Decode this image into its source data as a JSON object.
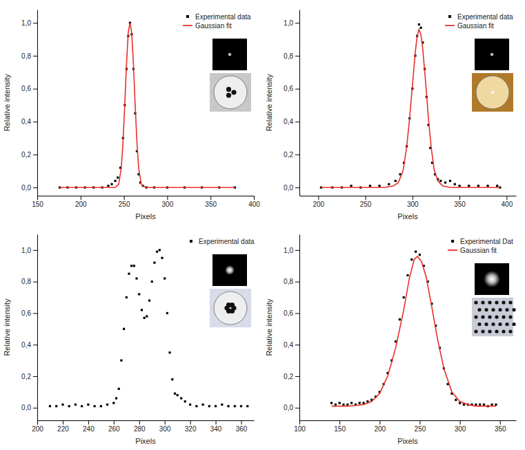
{
  "chart_data": [
    {
      "type": "scatter",
      "x_label": "Pixels",
      "y_label": "Relative intensity",
      "legend": "upper right",
      "xlim": [
        150,
        400
      ],
      "xticks": [
        150,
        200,
        250,
        300,
        350,
        400
      ],
      "ylim": [
        -0.05,
        1.08
      ],
      "yticks": [
        {
          "value": 0,
          "label": "0,0"
        },
        {
          "value": 0.2,
          "label": "0,2"
        },
        {
          "value": 0.4,
          "label": "0,4"
        },
        {
          "value": 0.6,
          "label": "0,6"
        },
        {
          "value": 0.8,
          "label": "0,8"
        },
        {
          "value": 1.0,
          "label": "1,0"
        }
      ],
      "series": [
        {
          "name": "Experimental data",
          "color": "#000000",
          "type": "scatter",
          "marker": "square",
          "x": [
            176,
            185,
            195,
            205,
            215,
            225,
            232,
            236,
            240,
            243,
            246,
            249,
            251,
            253,
            255,
            257,
            259,
            261,
            263,
            265,
            267,
            269,
            272,
            276,
            285,
            300,
            320,
            340,
            360,
            378
          ],
          "values": [
            0,
            0,
            0,
            0,
            0,
            0,
            0.01,
            0.02,
            0.04,
            0.06,
            0.12,
            0.3,
            0.5,
            0.72,
            0.92,
            1.0,
            0.93,
            0.72,
            0.45,
            0.22,
            0.08,
            0.03,
            0.01,
            0,
            0,
            0,
            0,
            0,
            0,
            0
          ]
        },
        {
          "name": "Gaussian fit",
          "color": "#e8302a",
          "type": "line",
          "line_style": "solid",
          "x": [
            176,
            240,
            244,
            247,
            249,
            251,
            253,
            255,
            257,
            259,
            261,
            263,
            265,
            267,
            270,
            275,
            378
          ],
          "values": [
            0,
            0,
            0.02,
            0.12,
            0.28,
            0.5,
            0.75,
            0.94,
            1.0,
            0.94,
            0.75,
            0.5,
            0.28,
            0.12,
            0.02,
            0,
            0
          ]
        }
      ]
    },
    {
      "type": "scatter",
      "x_label": "Pixels",
      "y_label": "Relative intensity",
      "legend": "upper right",
      "xlim": [
        180,
        410
      ],
      "xticks": [
        200,
        250,
        300,
        350,
        400
      ],
      "ylim": [
        -0.05,
        1.08
      ],
      "yticks": [
        {
          "value": 0,
          "label": "0,0"
        },
        {
          "value": 0.2,
          "label": "0,2"
        },
        {
          "value": 0.4,
          "label": "0,4"
        },
        {
          "value": 0.6,
          "label": "0,6"
        },
        {
          "value": 0.8,
          "label": "0,8"
        },
        {
          "value": 1.0,
          "label": "1,0"
        }
      ],
      "series": [
        {
          "name": "Experimental data",
          "color": "#000000",
          "type": "scatter",
          "marker": "square",
          "x": [
            203,
            215,
            225,
            235,
            245,
            255,
            265,
            275,
            282,
            287,
            291,
            294,
            297,
            300,
            303,
            305,
            307,
            309,
            311,
            313,
            315,
            317,
            319,
            321,
            324,
            327,
            330,
            335,
            340,
            345,
            350,
            360,
            370,
            380,
            390,
            393
          ],
          "values": [
            0,
            0,
            0,
            0.01,
            0,
            0.01,
            0.01,
            0.02,
            0.04,
            0.08,
            0.15,
            0.25,
            0.42,
            0.6,
            0.8,
            0.92,
            0.99,
            0.97,
            0.88,
            0.72,
            0.55,
            0.38,
            0.24,
            0.15,
            0.08,
            0.05,
            0.04,
            0.03,
            0.04,
            0.02,
            0.01,
            0.01,
            0.01,
            0.01,
            0.01,
            0
          ]
        },
        {
          "name": "Gaussian fit",
          "color": "#e8302a",
          "type": "line",
          "line_style": "solid",
          "x": [
            203,
            270,
            280,
            285,
            290,
            294,
            297,
            300,
            303,
            305,
            307,
            309,
            311,
            314,
            317,
            320,
            323,
            327,
            332,
            340,
            393
          ],
          "values": [
            0,
            0,
            0.01,
            0.03,
            0.1,
            0.25,
            0.42,
            0.62,
            0.82,
            0.92,
            0.96,
            0.93,
            0.84,
            0.64,
            0.42,
            0.24,
            0.11,
            0.04,
            0.01,
            0,
            0
          ]
        }
      ]
    },
    {
      "type": "scatter",
      "x_label": "Pixels",
      "y_label": "Relative intensity",
      "legend": "upper right",
      "xlim": [
        200,
        370
      ],
      "xticks": [
        200,
        220,
        240,
        260,
        280,
        300,
        320,
        340,
        360
      ],
      "ylim": [
        -0.08,
        1.1
      ],
      "yticks": [
        {
          "value": 0,
          "label": "0,0"
        },
        {
          "value": 0.2,
          "label": "0,2"
        },
        {
          "value": 0.4,
          "label": "0,4"
        },
        {
          "value": 0.6,
          "label": "0,6"
        },
        {
          "value": 0.8,
          "label": "0,8"
        },
        {
          "value": 1.0,
          "label": "1,0"
        }
      ],
      "series": [
        {
          "name": "Experimental data",
          "color": "#000000",
          "type": "scatter",
          "marker": "square",
          "x": [
            210,
            215,
            220,
            225,
            230,
            235,
            240,
            245,
            250,
            255,
            260,
            262,
            264,
            266,
            268,
            270,
            272,
            274,
            276,
            278,
            280,
            282,
            284,
            286,
            288,
            290,
            292,
            294,
            296,
            298,
            300,
            302,
            304,
            306,
            308,
            310,
            313,
            316,
            320,
            325,
            330,
            335,
            340,
            345,
            350,
            355,
            360,
            365
          ],
          "values": [
            0.01,
            0.01,
            0.02,
            0.01,
            0.02,
            0.01,
            0.02,
            0.01,
            0.01,
            0.02,
            0.03,
            0.06,
            0.12,
            0.3,
            0.5,
            0.7,
            0.85,
            0.9,
            0.9,
            0.82,
            0.72,
            0.62,
            0.57,
            0.58,
            0.68,
            0.8,
            0.92,
            0.99,
            1.0,
            0.95,
            0.82,
            0.6,
            0.35,
            0.18,
            0.09,
            0.08,
            0.06,
            0.04,
            0.02,
            0.01,
            0.02,
            0.01,
            0.01,
            0.02,
            0.01,
            0.01,
            0.01,
            0.01
          ]
        }
      ]
    },
    {
      "type": "scatter",
      "x_label": "Pixels",
      "y_label": "Relative intensity",
      "legend": "upper right",
      "xlim": [
        100,
        370
      ],
      "xticks": [
        100,
        150,
        200,
        250,
        300,
        350
      ],
      "ylim": [
        -0.08,
        1.1
      ],
      "yticks": [
        {
          "value": 0,
          "label": "0,0"
        },
        {
          "value": 0.2,
          "label": "0,2"
        },
        {
          "value": 0.4,
          "label": "0,4"
        },
        {
          "value": 0.6,
          "label": "0,6"
        },
        {
          "value": 0.8,
          "label": "0,8"
        },
        {
          "value": 1.0,
          "label": "1,0"
        }
      ],
      "series": [
        {
          "name": "Experimental Dat",
          "color": "#000000",
          "type": "scatter",
          "marker": "square",
          "x": [
            140,
            145,
            150,
            155,
            160,
            165,
            170,
            175,
            180,
            185,
            190,
            195,
            200,
            205,
            210,
            215,
            220,
            225,
            230,
            235,
            240,
            245,
            250,
            255,
            260,
            265,
            270,
            275,
            280,
            285,
            290,
            295,
            300,
            305,
            310,
            315,
            320,
            325,
            330,
            335,
            340,
            345
          ],
          "values": [
            0.03,
            0.02,
            0.03,
            0.02,
            0.02,
            0.03,
            0.02,
            0.03,
            0.03,
            0.04,
            0.05,
            0.07,
            0.1,
            0.15,
            0.22,
            0.3,
            0.42,
            0.56,
            0.7,
            0.84,
            0.94,
            0.99,
            0.97,
            0.9,
            0.8,
            0.66,
            0.52,
            0.38,
            0.25,
            0.15,
            0.09,
            0.05,
            0.03,
            0.02,
            0.02,
            0.02,
            0.02,
            0.02,
            0.02,
            0.01,
            0.02,
            0.02
          ]
        },
        {
          "name": "Gaussian fit",
          "color": "#e8302a",
          "type": "line",
          "line_style": "solid",
          "x": [
            140,
            160,
            180,
            190,
            200,
            210,
            220,
            230,
            237,
            243,
            247,
            252,
            258,
            265,
            272,
            280,
            290,
            300,
            310,
            320,
            345
          ],
          "values": [
            0.01,
            0.01,
            0.02,
            0.04,
            0.09,
            0.2,
            0.38,
            0.62,
            0.82,
            0.94,
            0.96,
            0.93,
            0.83,
            0.64,
            0.44,
            0.25,
            0.1,
            0.04,
            0.02,
            0.01,
            0.01
          ]
        }
      ]
    }
  ]
}
